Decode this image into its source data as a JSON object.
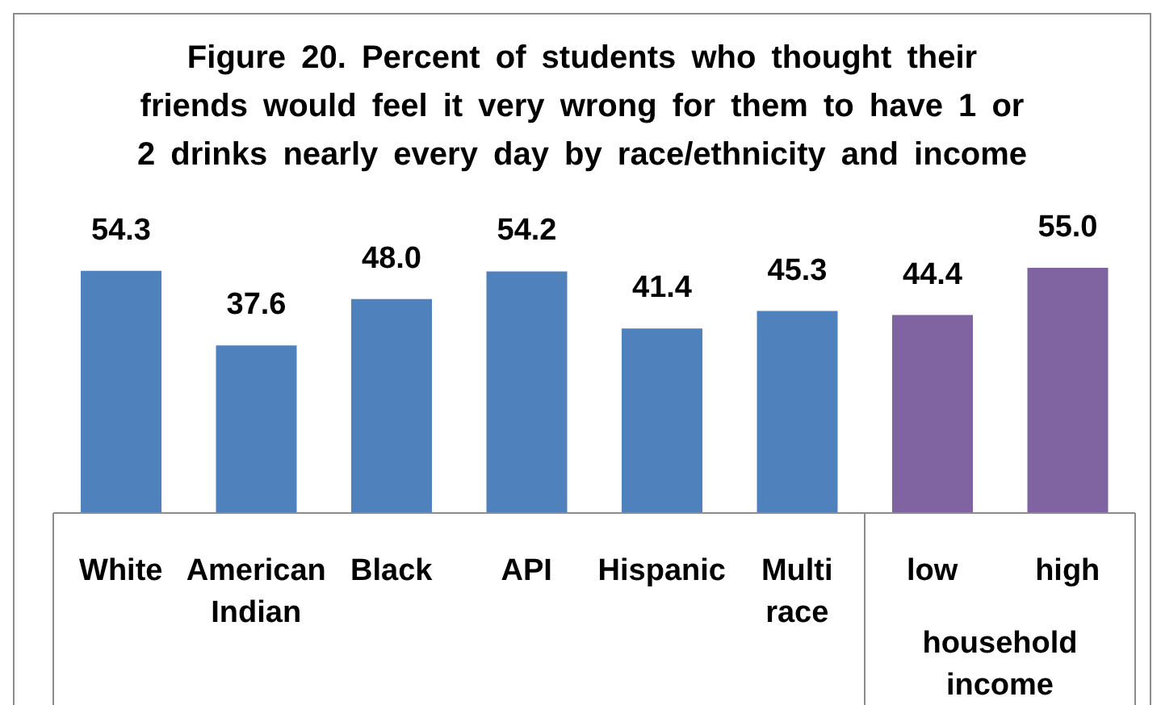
{
  "chart_data": {
    "type": "bar",
    "title": "Figure 20. Percent of students who thought their friends would feel it very wrong for them to have 1 or 2 drinks nearly every day by race/ethnicity and income",
    "categories": [
      "White",
      "American Indian",
      "Black",
      "API",
      "Hispanic",
      "Multi race",
      "low",
      "high"
    ],
    "values": [
      54.3,
      37.6,
      48.0,
      54.2,
      41.4,
      45.3,
      44.4,
      55.0
    ],
    "value_labels": [
      "54.3",
      "37.6",
      "48.0",
      "54.2",
      "41.4",
      "45.3",
      "44.4",
      "55.0"
    ],
    "colors": [
      "#4f81bd",
      "#4f81bd",
      "#4f81bd",
      "#4f81bd",
      "#4f81bd",
      "#4f81bd",
      "#8064a2",
      "#8064a2"
    ],
    "annotations": [
      "household income"
    ],
    "tick_labels": "x",
    "grid": false,
    "legend": false
  }
}
